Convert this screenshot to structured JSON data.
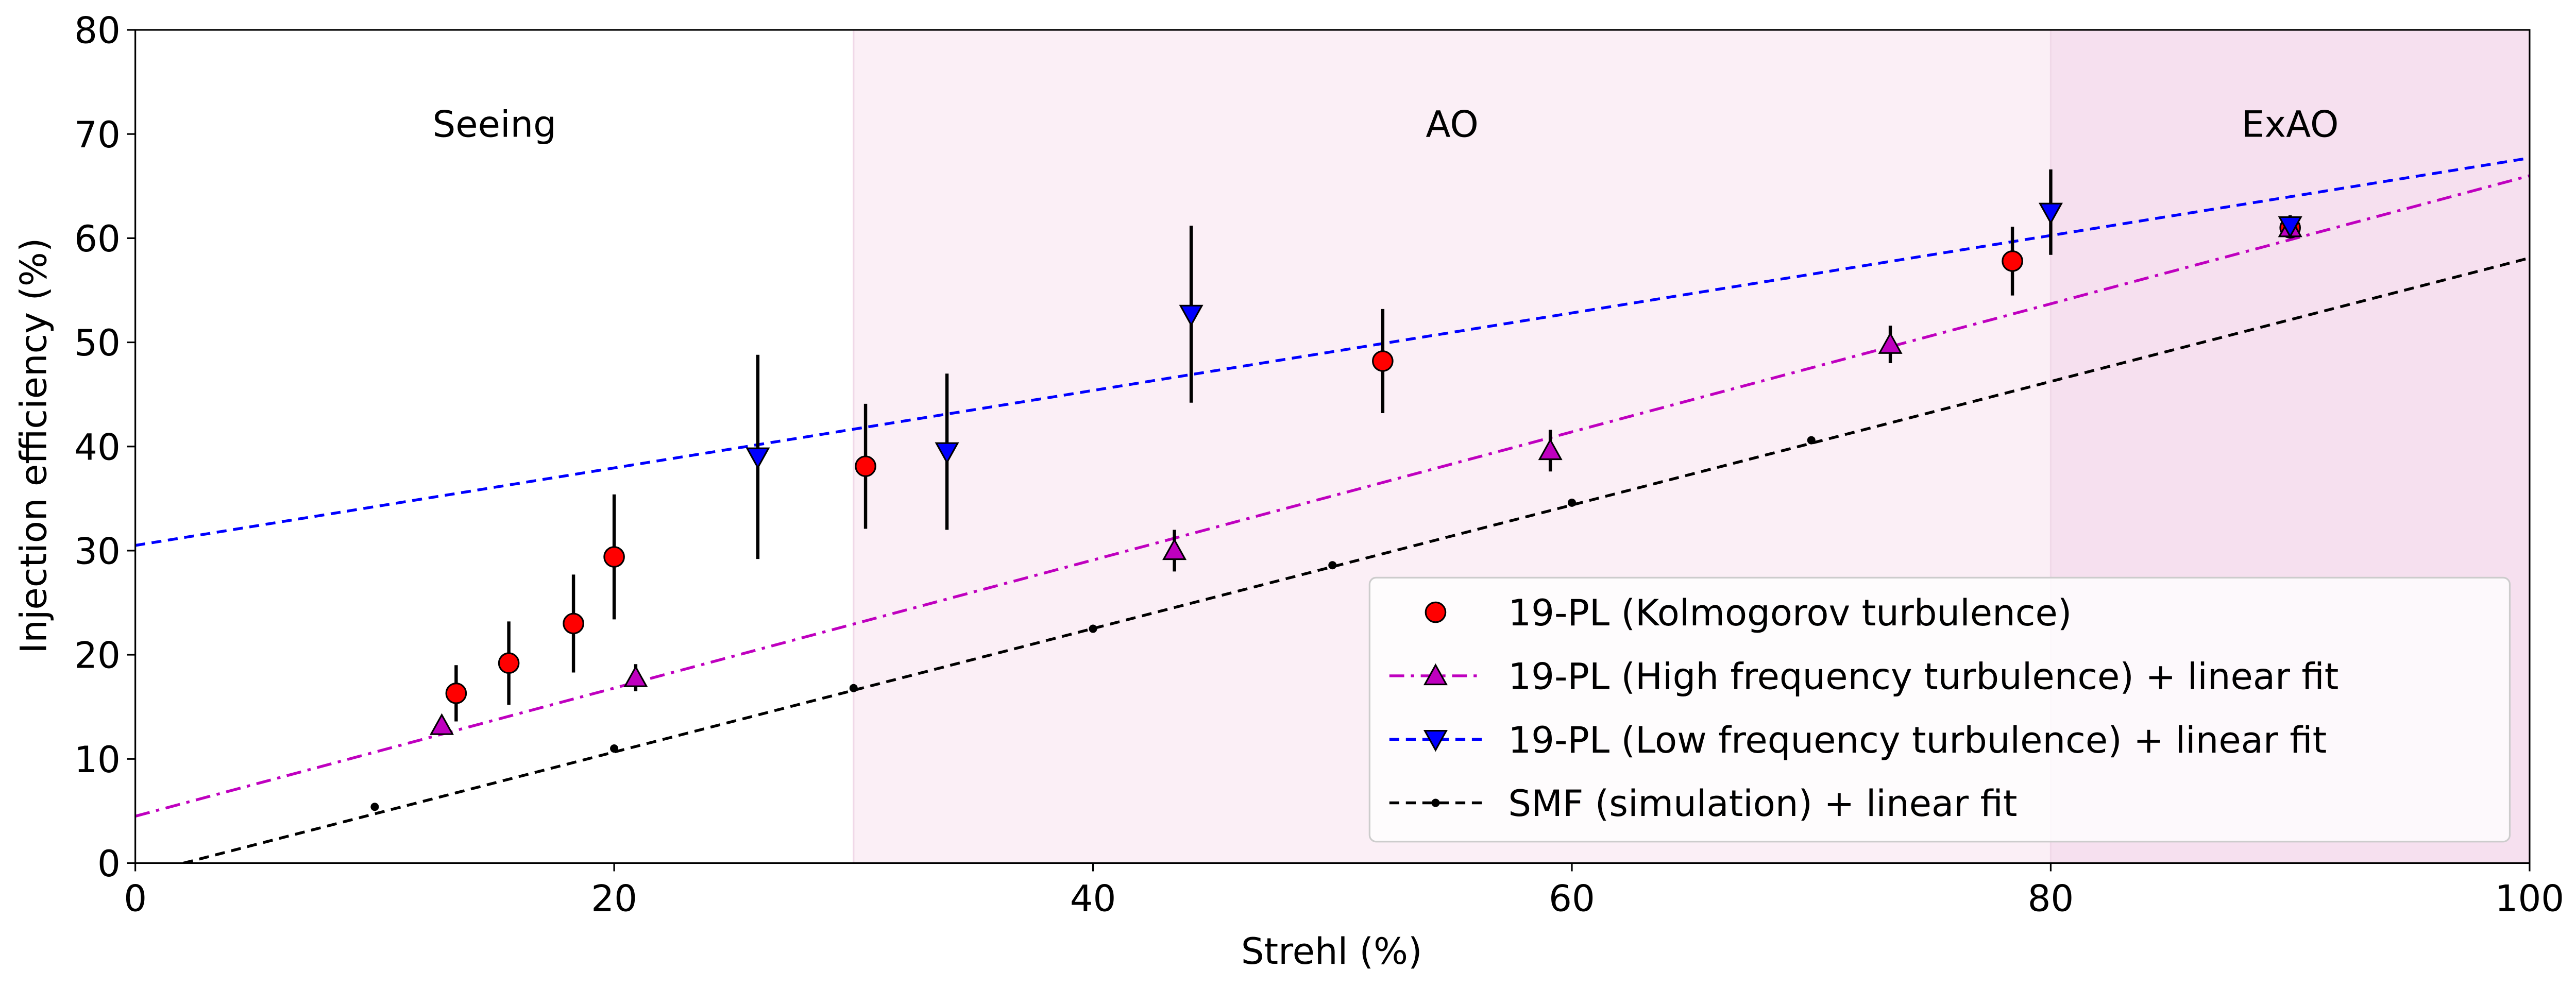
{
  "chart_data": {
    "type": "scatter",
    "xlabel": "Strehl (%)",
    "ylabel": "Injection efficiency (%)",
    "xlim": [
      0,
      100
    ],
    "ylim": [
      0,
      80
    ],
    "xticks": [
      "0",
      "20",
      "40",
      "60",
      "80",
      "100"
    ],
    "yticks": [
      "0",
      "10",
      "20",
      "30",
      "40",
      "50",
      "60",
      "70",
      "80"
    ],
    "grid": false,
    "legend_position": "lower-right",
    "regions": [
      {
        "label": "Seeing",
        "x": [
          0,
          30
        ],
        "color": "#ffffff"
      },
      {
        "label": "AO",
        "x": [
          30,
          80
        ],
        "color": "#fbeff6"
      },
      {
        "label": "ExAO",
        "x": [
          80,
          100
        ],
        "color": "#f6e0ef"
      }
    ],
    "series": [
      {
        "name": "19-PL (Kolmogorov turbulence)",
        "marker": "circle",
        "color": "#ff0000",
        "line": "none",
        "x": [
          13.4,
          15.6,
          18.3,
          20.0,
          30.5,
          52.1,
          78.4,
          90.0
        ],
        "y": [
          16.3,
          19.2,
          23.0,
          29.4,
          38.1,
          48.2,
          57.8,
          61.0
        ],
        "err": [
          2.7,
          4.0,
          4.7,
          6.0,
          6.0,
          5.0,
          3.3,
          1.0
        ]
      },
      {
        "name": "19-PL (High frequency turbulence) + linear fit",
        "marker": "triangle-up",
        "color": "#bf00bf",
        "line": "dashdot",
        "x": [
          12.8,
          20.9,
          43.4,
          59.1,
          73.3,
          90.0
        ],
        "y": [
          13.2,
          17.8,
          30.0,
          39.6,
          49.8,
          61.0
        ],
        "err": [
          0,
          1.3,
          2.0,
          2.0,
          1.8,
          0.8
        ],
        "fit": {
          "x": [
            0,
            100
          ],
          "y": [
            4.5,
            66.0
          ]
        }
      },
      {
        "name": "19-PL (Low frequency turbulence) + linear fit",
        "marker": "triangle-down",
        "color": "#0000ff",
        "line": "dashed",
        "x": [
          26.0,
          33.9,
          44.1,
          80.0,
          90.0
        ],
        "y": [
          39.0,
          39.5,
          52.7,
          62.5,
          61.2
        ],
        "err": [
          9.8,
          7.5,
          8.5,
          4.1,
          1.0
        ],
        "fit": {
          "x": [
            0,
            100
          ],
          "y": [
            30.5,
            67.7
          ]
        }
      },
      {
        "name": "SMF (simulation) + linear fit",
        "marker": "dot",
        "color": "#000000",
        "line": "dashed",
        "x": [
          10,
          20,
          30,
          40,
          50,
          60,
          70
        ],
        "y": [
          5.4,
          11.0,
          16.8,
          22.5,
          28.6,
          34.6,
          40.6
        ],
        "err": [
          0,
          0,
          0,
          0,
          0,
          0,
          0
        ],
        "fit": {
          "x": [
            0,
            100
          ],
          "y": [
            -1.2,
            58.1
          ]
        }
      }
    ]
  }
}
